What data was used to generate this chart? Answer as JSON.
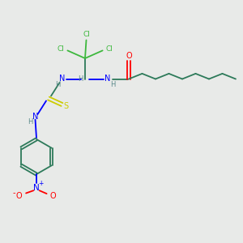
{
  "bg_color": "#e8eae8",
  "C": "#2d7a5a",
  "Cl": "#3db83d",
  "O": "#ff0000",
  "N": "#0000ff",
  "H": "#5a8a8a",
  "S": "#cccc00",
  "figsize": [
    3.0,
    3.0
  ],
  "dpi": 100
}
